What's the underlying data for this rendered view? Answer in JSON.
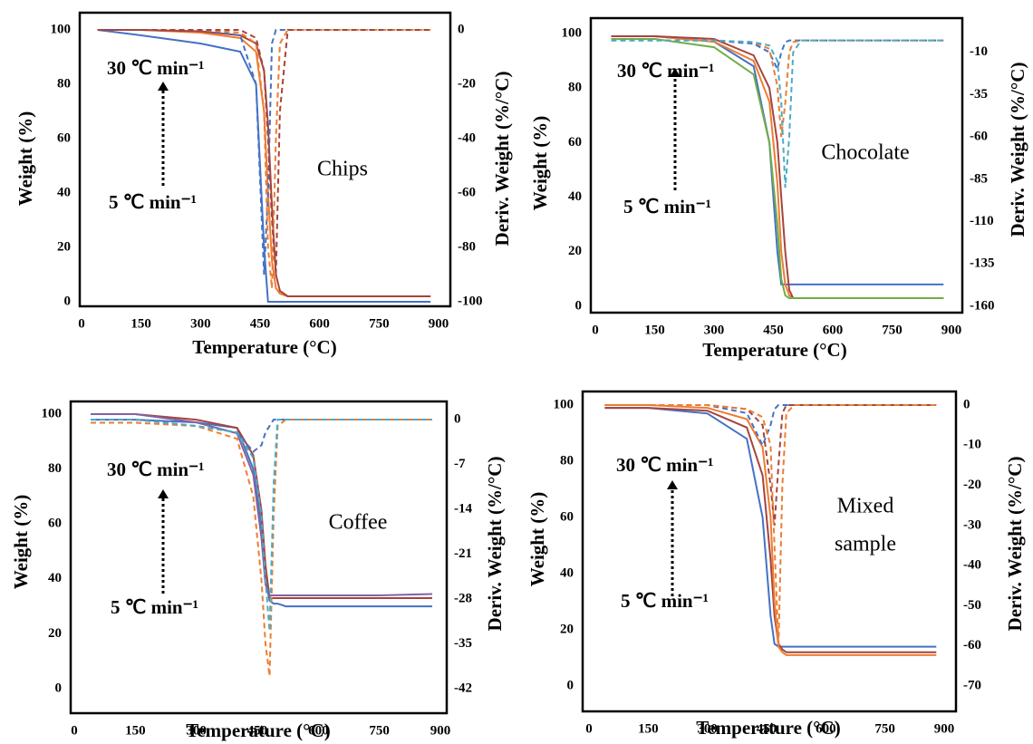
{
  "chart_data": [
    {
      "type": "line",
      "label": [
        "Chips"
      ],
      "annotations": [
        "30 ℃ min⁻¹",
        "5 ℃ min⁻¹"
      ],
      "xlabel": "Temperature (°C)",
      "ylabel": "Weight (%)",
      "y2label": "Deriv. Weight (%/°C)",
      "xlim": [
        0,
        900
      ],
      "xticks": [
        0,
        150,
        300,
        450,
        600,
        750,
        900
      ],
      "ylim": [
        0,
        100
      ],
      "yticks": [
        0,
        20,
        40,
        60,
        80,
        100
      ],
      "y2lim": [
        -100,
        0
      ],
      "y2ticks": [
        0,
        -20,
        -40,
        -60,
        -80,
        -100
      ],
      "x": [
        40,
        150,
        300,
        400,
        440,
        460,
        470,
        480,
        490,
        500,
        520,
        600,
        750,
        880
      ],
      "series": [
        {
          "color": "#4472c4",
          "values": [
            100,
            98,
            95,
            92,
            80,
            20,
            0,
            0,
            0,
            0,
            0,
            0,
            0,
            0
          ]
        },
        {
          "color": "#ed7d31",
          "values": [
            100,
            100,
            99,
            97,
            92,
            70,
            40,
            15,
            5,
            3,
            2,
            2,
            2,
            2
          ]
        },
        {
          "color": "#a5443f",
          "values": [
            100,
            100,
            99.5,
            98,
            95,
            85,
            65,
            35,
            10,
            4,
            2,
            2,
            2,
            2
          ]
        },
        {
          "color": "#4472c4",
          "axis": "y2",
          "values": [
            0,
            0,
            0,
            -2,
            -20,
            -90,
            -60,
            -5,
            0,
            0,
            0,
            0,
            0,
            0
          ]
        },
        {
          "color": "#ed7d31",
          "axis": "y2",
          "values": [
            0,
            0,
            0,
            -1,
            -5,
            -30,
            -80,
            -95,
            -40,
            -5,
            0,
            0,
            0,
            0
          ]
        },
        {
          "color": "#a5443f",
          "axis": "y2",
          "values": [
            0,
            0,
            0,
            0,
            -3,
            -15,
            -40,
            -70,
            -90,
            -30,
            0,
            0,
            0,
            0
          ]
        }
      ]
    },
    {
      "type": "line",
      "label": [
        "Chocolate"
      ],
      "annotations": [
        "30 ℃ min⁻¹",
        "5 ℃ min⁻¹"
      ],
      "xlabel": "Temperature (°C)",
      "ylabel": "Weight (%)",
      "y2label": "Deriv. Weight (%/°C)",
      "xlim": [
        0,
        900
      ],
      "xticks": [
        0,
        150,
        300,
        450,
        600,
        750,
        900
      ],
      "ylim": [
        0,
        100
      ],
      "yticks": [
        0,
        20,
        40,
        60,
        80,
        100
      ],
      "y2lim": [
        -160,
        0
      ],
      "y2ticks": [
        -10,
        -35,
        -60,
        -85,
        -110,
        -135,
        -160
      ],
      "x": [
        40,
        150,
        300,
        400,
        440,
        460,
        470,
        480,
        490,
        500,
        520,
        600,
        750,
        880
      ],
      "series": [
        {
          "color": "#4472c4",
          "values": [
            99,
            99,
            97,
            88,
            60,
            20,
            8,
            8,
            8,
            8,
            8,
            8,
            8,
            8
          ]
        },
        {
          "color": "#ed7d31",
          "values": [
            99,
            99,
            97,
            90,
            75,
            45,
            20,
            8,
            4,
            3,
            3,
            3,
            3,
            3
          ]
        },
        {
          "color": "#a5443f",
          "values": [
            99,
            99,
            98,
            92,
            80,
            60,
            40,
            20,
            6,
            3,
            3,
            3,
            3,
            3
          ]
        },
        {
          "color": "#70ad47",
          "values": [
            98,
            98,
            95,
            85,
            60,
            30,
            10,
            4,
            3,
            3,
            3,
            3,
            3,
            3
          ]
        },
        {
          "color": "#4472c4",
          "axis": "y2",
          "values": [
            -3,
            -3,
            -3,
            -5,
            -10,
            -20,
            -10,
            -4,
            -3,
            -3,
            -3,
            -3,
            -3,
            -3
          ]
        },
        {
          "color": "#ed7d31",
          "axis": "y2",
          "values": [
            -3,
            -3,
            -3,
            -4,
            -8,
            -30,
            -60,
            -40,
            -10,
            -4,
            -3,
            -3,
            -3,
            -3
          ]
        },
        {
          "color": "#4bacc6",
          "axis": "y2",
          "values": [
            -3,
            -3,
            -3,
            -4,
            -6,
            -15,
            -40,
            -90,
            -60,
            -10,
            -3,
            -3,
            -3,
            -3
          ]
        }
      ]
    },
    {
      "type": "line",
      "label": [
        "Coffee"
      ],
      "annotations": [
        "30 ℃ min⁻¹",
        "5 ℃ min⁻¹"
      ],
      "xlabel": "Temperature (°C)",
      "ylabel": "Weight (%)",
      "y2label": "Deriv. Weight (%/°C)",
      "xlim": [
        0,
        900
      ],
      "xticks": [
        0,
        150,
        300,
        450,
        600,
        750,
        900
      ],
      "ylim": [
        0,
        100
      ],
      "yticks": [
        0,
        20,
        40,
        60,
        80,
        100
      ],
      "y2lim": [
        -42,
        0
      ],
      "y2ticks": [
        0,
        -7,
        -14,
        -21,
        -28,
        -35,
        -42
      ],
      "x": [
        40,
        150,
        300,
        400,
        440,
        460,
        470,
        480,
        490,
        500,
        520,
        600,
        750,
        880
      ],
      "series": [
        {
          "color": "#4472c4",
          "values": [
            98,
            98,
            97,
            95,
            80,
            60,
            40,
            32,
            31,
            31,
            30,
            30,
            30,
            30
          ]
        },
        {
          "color": "#a5443f",
          "values": [
            100,
            100,
            98,
            95,
            85,
            65,
            45,
            33,
            33,
            33,
            33,
            33,
            33,
            33
          ]
        },
        {
          "color": "#8064a2",
          "values": [
            100,
            100,
            97,
            93,
            78,
            55,
            38,
            34,
            34,
            34,
            34,
            34,
            34,
            34.5
          ]
        },
        {
          "color": "#4472c4",
          "axis": "y2",
          "values": [
            0,
            0,
            -1,
            -2,
            -5,
            -4,
            -2,
            -1,
            0,
            0,
            0,
            0,
            0,
            0
          ]
        },
        {
          "color": "#ed7d31",
          "axis": "y2",
          "values": [
            -0.5,
            -0.5,
            -1,
            -3,
            -12,
            -25,
            -35,
            -40,
            -15,
            -1,
            0,
            0,
            0,
            0
          ]
        },
        {
          "color": "#4bacc6",
          "axis": "y2",
          "values": [
            0,
            0,
            -1,
            -2,
            -6,
            -15,
            -25,
            -33,
            -10,
            0,
            0,
            0,
            0,
            0
          ]
        }
      ]
    },
    {
      "type": "line",
      "label": [
        "Mixed",
        "sample"
      ],
      "annotations": [
        "30 ℃ min⁻¹",
        "5 ℃ min⁻¹"
      ],
      "xlabel": "Temperature (°C)",
      "ylabel": "Weight (%)",
      "y2label": "Deriv. Weight (%/°C)",
      "xlim": [
        0,
        900
      ],
      "xticks": [
        0,
        150,
        300,
        450,
        600,
        750,
        900
      ],
      "ylim": [
        0,
        100
      ],
      "yticks": [
        0,
        20,
        40,
        60,
        80,
        100
      ],
      "y2lim": [
        -70,
        0
      ],
      "y2ticks": [
        0,
        -10,
        -20,
        -30,
        -40,
        -50,
        -60,
        -70
      ],
      "x": [
        40,
        150,
        300,
        400,
        440,
        460,
        470,
        480,
        490,
        500,
        520,
        600,
        750,
        880
      ],
      "series": [
        {
          "color": "#4472c4",
          "values": [
            99,
            99,
            97,
            88,
            60,
            25,
            15,
            14,
            14,
            14,
            14,
            14,
            14,
            14
          ]
        },
        {
          "color": "#a5443f",
          "values": [
            99,
            99,
            98,
            92,
            75,
            45,
            25,
            15,
            13,
            12,
            12,
            12,
            12,
            12
          ]
        },
        {
          "color": "#ed7d31",
          "values": [
            100,
            100,
            99,
            95,
            85,
            60,
            30,
            14,
            12,
            11,
            11,
            11,
            11,
            11
          ]
        },
        {
          "color": "#4472c4",
          "axis": "y2",
          "values": [
            0,
            0,
            0,
            -2,
            -10,
            -5,
            -1,
            0,
            0,
            0,
            0,
            0,
            0,
            0
          ]
        },
        {
          "color": "#a5443f",
          "axis": "y2",
          "values": [
            0,
            0,
            0,
            -1,
            -5,
            -20,
            -30,
            -15,
            -2,
            0,
            0,
            0,
            0,
            0
          ]
        },
        {
          "color": "#ed7d31",
          "axis": "y2",
          "values": [
            0,
            0,
            0,
            -1,
            -3,
            -10,
            -35,
            -60,
            -20,
            -2,
            0,
            0,
            0,
            0
          ]
        }
      ]
    }
  ]
}
